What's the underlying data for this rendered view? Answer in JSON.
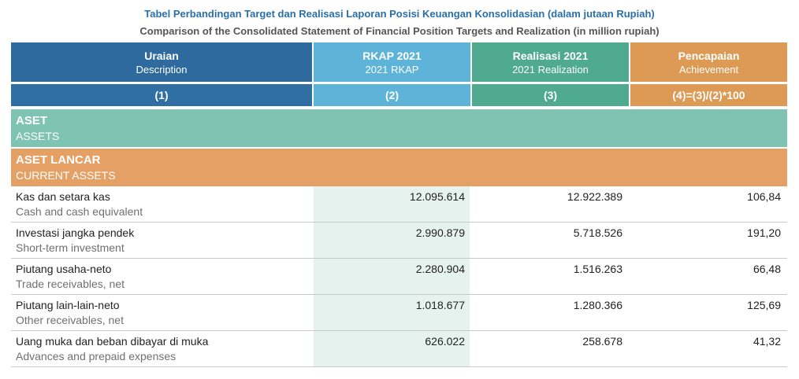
{
  "title_id": "Tabel Perbandingan Target dan Realisasi Laporan Posisi Keuangan Konsolidasian (dalam jutaan Rupiah)",
  "title_en": "Comparison of the Consolidated Statement of Financial Position Targets and Realization (in million rupiah)",
  "columns": [
    {
      "main": "Uraian",
      "sub": "Description",
      "num": "(1)"
    },
    {
      "main": "RKAP 2021",
      "sub": "2021 RKAP",
      "num": "(2)"
    },
    {
      "main": "Realisasi 2021",
      "sub": "2021 Realization",
      "num": "(3)"
    },
    {
      "main": "Pencapaian",
      "sub": "Achievement",
      "num": "(4)=(3)/(2)*100"
    }
  ],
  "sections": [
    {
      "main": "ASET",
      "sub": "ASSETS"
    },
    {
      "main": "ASET LANCAR",
      "sub": "CURRENT ASSETS"
    }
  ],
  "rows": [
    {
      "label": "Kas dan setara kas",
      "label_en": "Cash and cash equivalent",
      "rkap": "12.095.614",
      "realisasi": "12.922.389",
      "pencapaian": "106,84"
    },
    {
      "label": "Investasi jangka pendek",
      "label_en": "Short-term investment",
      "rkap": "2.990.879",
      "realisasi": "5.718.526",
      "pencapaian": "191,20"
    },
    {
      "label": "Piutang usaha-neto",
      "label_en": "Trade receivables, net",
      "rkap": "2.280.904",
      "realisasi": "1.516.263",
      "pencapaian": "66,48"
    },
    {
      "label": "Piutang lain-lain-neto",
      "label_en": "Other receivables, net",
      "rkap": "1.018.677",
      "realisasi": "1.280.366",
      "pencapaian": "125,69"
    },
    {
      "label": "Uang muka dan beban dibayar di muka",
      "label_en": "Advances and prepaid expenses",
      "rkap": "626.022",
      "realisasi": "258.678",
      "pencapaian": "41,32"
    }
  ],
  "colors": {
    "header_desc": "#2e6a9e",
    "header_rkap": "#5eb3d9",
    "header_realisasi": "#4faa8f",
    "header_pencapaian": "#dd9a55",
    "section_assets": "#7fc3b2",
    "section_current": "#e4a065"
  }
}
